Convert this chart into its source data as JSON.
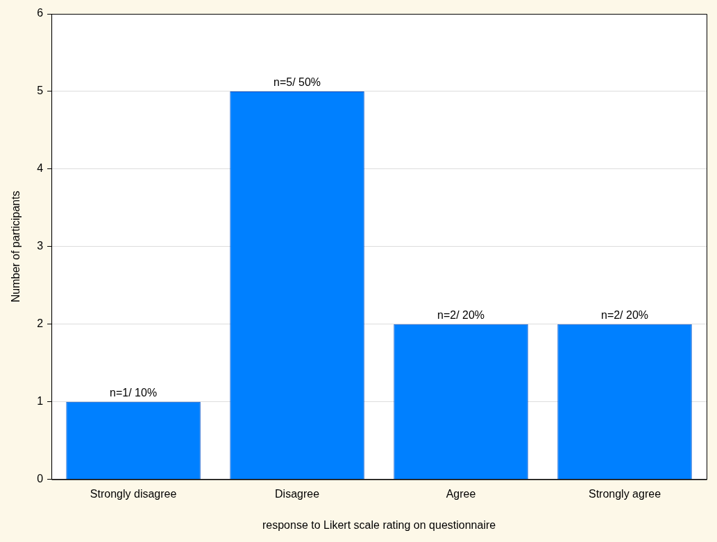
{
  "chart_data": {
    "type": "bar",
    "xlabel": "response to Likert scale rating on questionnaire",
    "ylabel": "Number of participants",
    "categories": [
      "Strongly disagree",
      "Disagree",
      "Agree",
      "Strongly agree"
    ],
    "values": [
      1,
      5,
      2,
      2
    ],
    "color": "#0080ff",
    "value_labels": [
      "n=1/ 10%",
      "n=5/ 50%",
      "n=2/ 20%",
      "n=2/ 20%"
    ],
    "ylim": [
      0,
      6
    ],
    "yticks": [
      0,
      1,
      2,
      3,
      4,
      5,
      6
    ],
    "grid": "y"
  }
}
